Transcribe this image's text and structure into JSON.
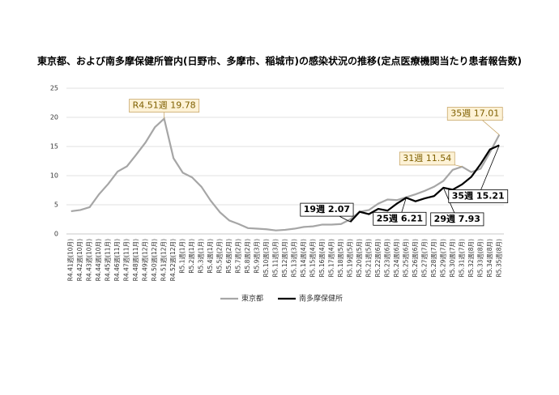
{
  "chart_data": {
    "type": "line",
    "title": "東京都、および南多摩保健所管内(日野市、多摩市、稲城市)の感染状況の推移(定点医療機関当たり患者報告数)",
    "categories": [
      "R4.41週(10月)",
      "R4.42週(10月)",
      "R4.43週(10月)",
      "R4.44週(10月)",
      "R4.45週(11月)",
      "R4.46週(11月)",
      "R4.47週(11月)",
      "R4.48週(11月)",
      "R4.49週(12月)",
      "R4.50週(12月)",
      "R4.51週(12月)",
      "R4.52週(12月)",
      "R5.1週(1月)",
      "R5.2週(1月)",
      "R5.3週(1月)",
      "R5.4週(1月)",
      "R5.5週(2月)",
      "R5.6週(2月)",
      "R5.7週(2月)",
      "R5.8週(2月)",
      "R5.9週(3月)",
      "R5.10週(3月)",
      "R5.11週(3月)",
      "R5.12週(3月)",
      "R5.13週(3月)",
      "R5.14週(4月)",
      "R5.15週(4月)",
      "R5.16週(4月)",
      "R5.17週(4月)",
      "R5.18週(5月)",
      "R5.19週(5月)",
      "R5.20週(5月)",
      "R5.21週(5月)",
      "R5.22週(6月)",
      "R5.23週(6月)",
      "R5.24週(6月)",
      "R5.25週(6月)",
      "R5.26週(6月)",
      "R5.27週(7月)",
      "R5.28週(7月)",
      "R5.29週(7月)",
      "R5.30週(7月)",
      "R5.31週(7月)",
      "R5.32週(8月)",
      "R5.33週(8月)",
      "R5.34週(8月)",
      "R5.35週(8月)"
    ],
    "series": [
      {
        "name": "東京都",
        "color": "#a6a6a6",
        "values": [
          3.9,
          4.1,
          4.6,
          6.8,
          8.6,
          10.7,
          11.6,
          13.6,
          15.7,
          18.3,
          19.78,
          13.0,
          10.5,
          9.7,
          8.1,
          5.7,
          3.7,
          2.3,
          1.7,
          1.0,
          0.9,
          0.8,
          0.6,
          0.7,
          0.9,
          1.2,
          1.3,
          1.6,
          1.6,
          1.7,
          2.5,
          3.8,
          4.1,
          5.2,
          5.9,
          5.8,
          6.3,
          6.8,
          7.4,
          8.1,
          9.1,
          11.0,
          11.54,
          10.6,
          11.2,
          14.0,
          17.01
        ],
        "value_labels": [
          null,
          null,
          null,
          null,
          null,
          null,
          null,
          null,
          null,
          null,
          "R4.51週 19.78",
          null,
          null,
          null,
          null,
          null,
          null,
          null,
          null,
          null,
          null,
          null,
          null,
          null,
          null,
          null,
          null,
          null,
          null,
          null,
          null,
          null,
          null,
          null,
          null,
          null,
          null,
          null,
          null,
          null,
          null,
          null,
          "31週 11.54",
          null,
          null,
          null,
          "35週 17.01"
        ]
      },
      {
        "name": "南多摩保健所",
        "color": "#000000",
        "values": [
          null,
          null,
          null,
          null,
          null,
          null,
          null,
          null,
          null,
          null,
          null,
          null,
          null,
          null,
          null,
          null,
          null,
          null,
          null,
          null,
          null,
          null,
          null,
          null,
          null,
          null,
          null,
          null,
          null,
          null,
          2.07,
          3.8,
          3.4,
          4.3,
          4.0,
          5.2,
          6.21,
          5.6,
          6.1,
          6.5,
          7.93,
          7.6,
          8.5,
          9.8,
          12.0,
          14.5,
          15.21
        ],
        "value_labels": [
          null,
          null,
          null,
          null,
          null,
          null,
          null,
          null,
          null,
          null,
          null,
          null,
          null,
          null,
          null,
          null,
          null,
          null,
          null,
          null,
          null,
          null,
          null,
          null,
          null,
          null,
          null,
          null,
          null,
          null,
          "19週 2.07",
          null,
          null,
          null,
          null,
          null,
          "25週 6.21",
          null,
          null,
          null,
          "29週 7.93",
          null,
          null,
          null,
          null,
          null,
          "35週 15.21"
        ]
      }
    ],
    "ylim": [
      0,
      25
    ],
    "yticks": [
      0,
      5,
      10,
      15,
      20,
      25
    ],
    "grid": true,
    "legend": "bottom"
  }
}
